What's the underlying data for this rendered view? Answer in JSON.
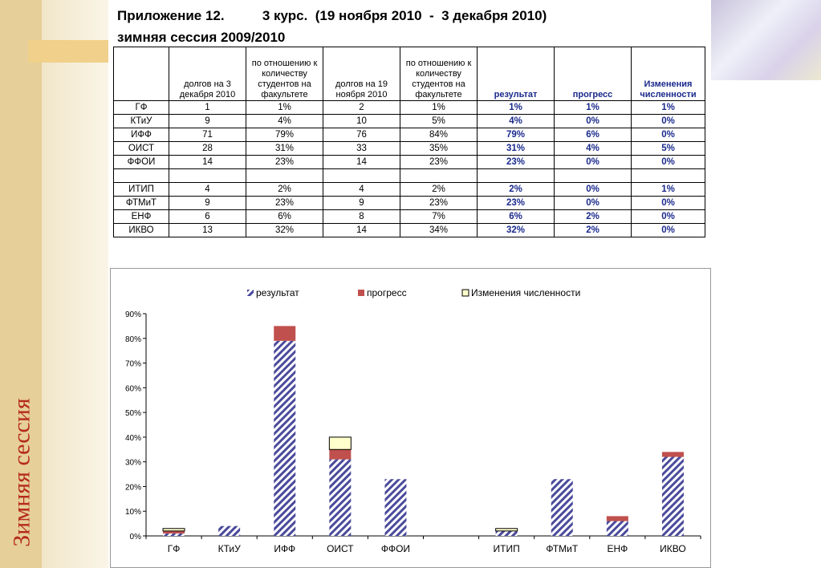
{
  "slide": {
    "vertical_title": "Зимняя сессия"
  },
  "sheet": {
    "title_line1": "Приложение 12.          3 курс.  (19 ноября 2010  -  3 декабря 2010)",
    "title_line2": "зимняя сессия 2009/2010",
    "headers": [
      "",
      "долгов на 3 декабря 2010",
      "по отношению к количеству студентов на факультете",
      "долгов на 19 ноября 2010",
      "по отношению к количеству студентов на факультете",
      "результат",
      "прогресс",
      "Изменения численности"
    ],
    "rows": [
      [
        "ГФ",
        "1",
        "1%",
        "2",
        "1%",
        "1%",
        "1%",
        "1%"
      ],
      [
        "КТиУ",
        "9",
        "4%",
        "10",
        "5%",
        "4%",
        "0%",
        "0%"
      ],
      [
        "ИФФ",
        "71",
        "79%",
        "76",
        "84%",
        "79%",
        "6%",
        "0%"
      ],
      [
        "ОИСТ",
        "28",
        "31%",
        "33",
        "35%",
        "31%",
        "4%",
        "5%"
      ],
      [
        "ФФОИ",
        "14",
        "23%",
        "14",
        "23%",
        "23%",
        "0%",
        "0%"
      ],
      [
        "",
        "",
        "",
        "",
        "",
        "",
        "",
        ""
      ],
      [
        "ИТИП",
        "4",
        "2%",
        "4",
        "2%",
        "2%",
        "0%",
        "1%"
      ],
      [
        "ФТМиТ",
        "9",
        "23%",
        "9",
        "23%",
        "23%",
        "0%",
        "0%"
      ],
      [
        "ЕНФ",
        "6",
        "6%",
        "8",
        "7%",
        "6%",
        "2%",
        "0%"
      ],
      [
        "ИКВО",
        "13",
        "32%",
        "14",
        "34%",
        "32%",
        "2%",
        "0%"
      ]
    ]
  },
  "chart_data": {
    "type": "bar",
    "stacked": true,
    "categories": [
      "ГФ",
      "КТиУ",
      "ИФФ",
      "ОИСТ",
      "ФФОИ",
      "",
      "ИТИП",
      "ФТМиТ",
      "ЕНФ",
      "ИКВО"
    ],
    "series": [
      {
        "name": "результат",
        "values": [
          1,
          4,
          79,
          31,
          23,
          0,
          2,
          23,
          6,
          32
        ],
        "color": "#4a4a9c",
        "pattern": "diagonal-hatch"
      },
      {
        "name": "прогресс",
        "values": [
          1,
          0,
          6,
          4,
          0,
          0,
          0,
          0,
          2,
          2
        ],
        "color": "#c0504d"
      },
      {
        "name": "Изменения численности",
        "values": [
          1,
          0,
          0,
          5,
          0,
          0,
          1,
          0,
          0,
          0
        ],
        "color": "#ffffcc"
      }
    ],
    "ylim": [
      0,
      90
    ],
    "yticks": [
      "0%",
      "10%",
      "20%",
      "30%",
      "40%",
      "50%",
      "60%",
      "70%",
      "80%",
      "90%"
    ],
    "legend_position": "top",
    "grid": false
  }
}
